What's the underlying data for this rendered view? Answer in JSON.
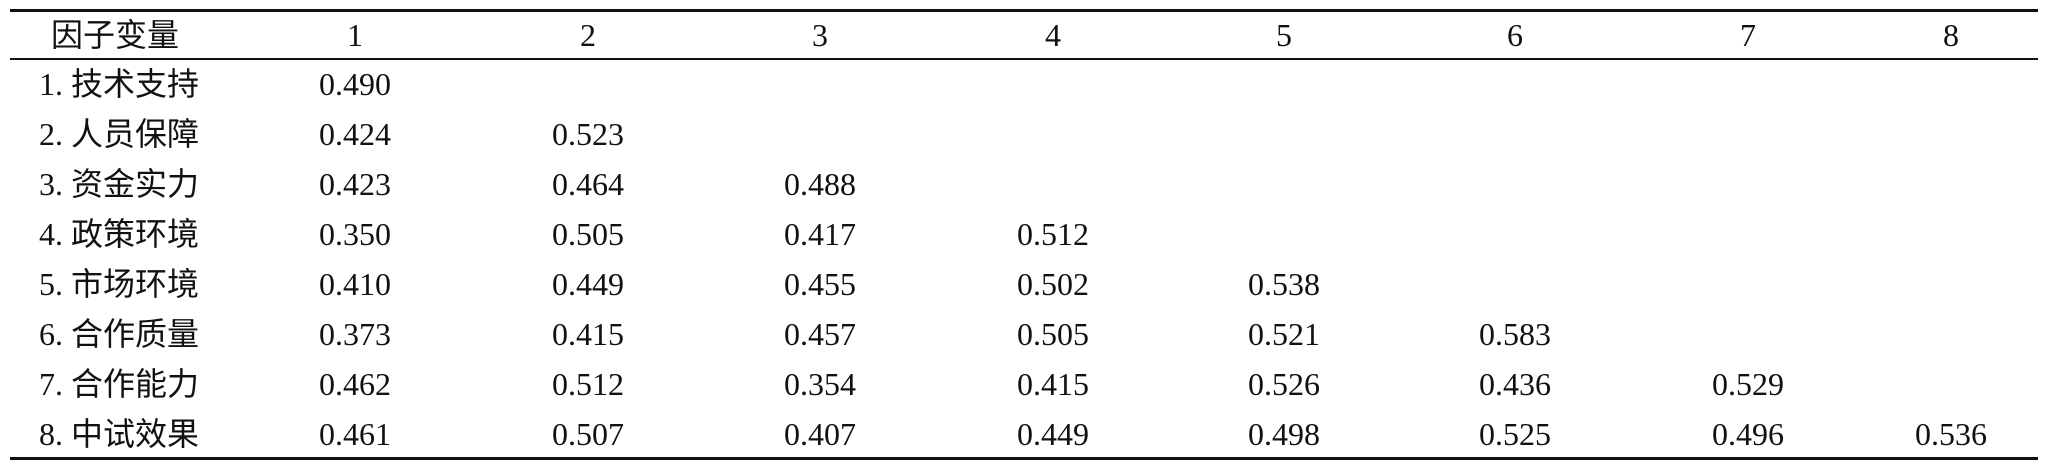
{
  "table": {
    "header": {
      "factor_label": "因子变量",
      "columns": [
        "1",
        "2",
        "3",
        "4",
        "5",
        "6",
        "7",
        "8"
      ]
    },
    "rows": [
      {
        "label": "1. 技术支持",
        "values": [
          "0.490"
        ]
      },
      {
        "label": "2. 人员保障",
        "values": [
          "0.424",
          "0.523"
        ]
      },
      {
        "label": "3. 资金实力",
        "values": [
          "0.423",
          "0.464",
          "0.488"
        ]
      },
      {
        "label": "4. 政策环境",
        "values": [
          "0.350",
          "0.505",
          "0.417",
          "0.512"
        ]
      },
      {
        "label": "5. 市场环境",
        "values": [
          "0.410",
          "0.449",
          "0.455",
          "0.502",
          "0.538"
        ]
      },
      {
        "label": "6. 合作质量",
        "values": [
          "0.373",
          "0.415",
          "0.457",
          "0.505",
          "0.521",
          "0.583"
        ]
      },
      {
        "label": "7. 合作能力",
        "values": [
          "0.462",
          "0.512",
          "0.354",
          "0.415",
          "0.526",
          "0.436",
          "0.529"
        ]
      },
      {
        "label": "8. 中试效果",
        "values": [
          "0.461",
          "0.507",
          "0.407",
          "0.449",
          "0.498",
          "0.525",
          "0.496",
          "0.536"
        ]
      }
    ]
  }
}
